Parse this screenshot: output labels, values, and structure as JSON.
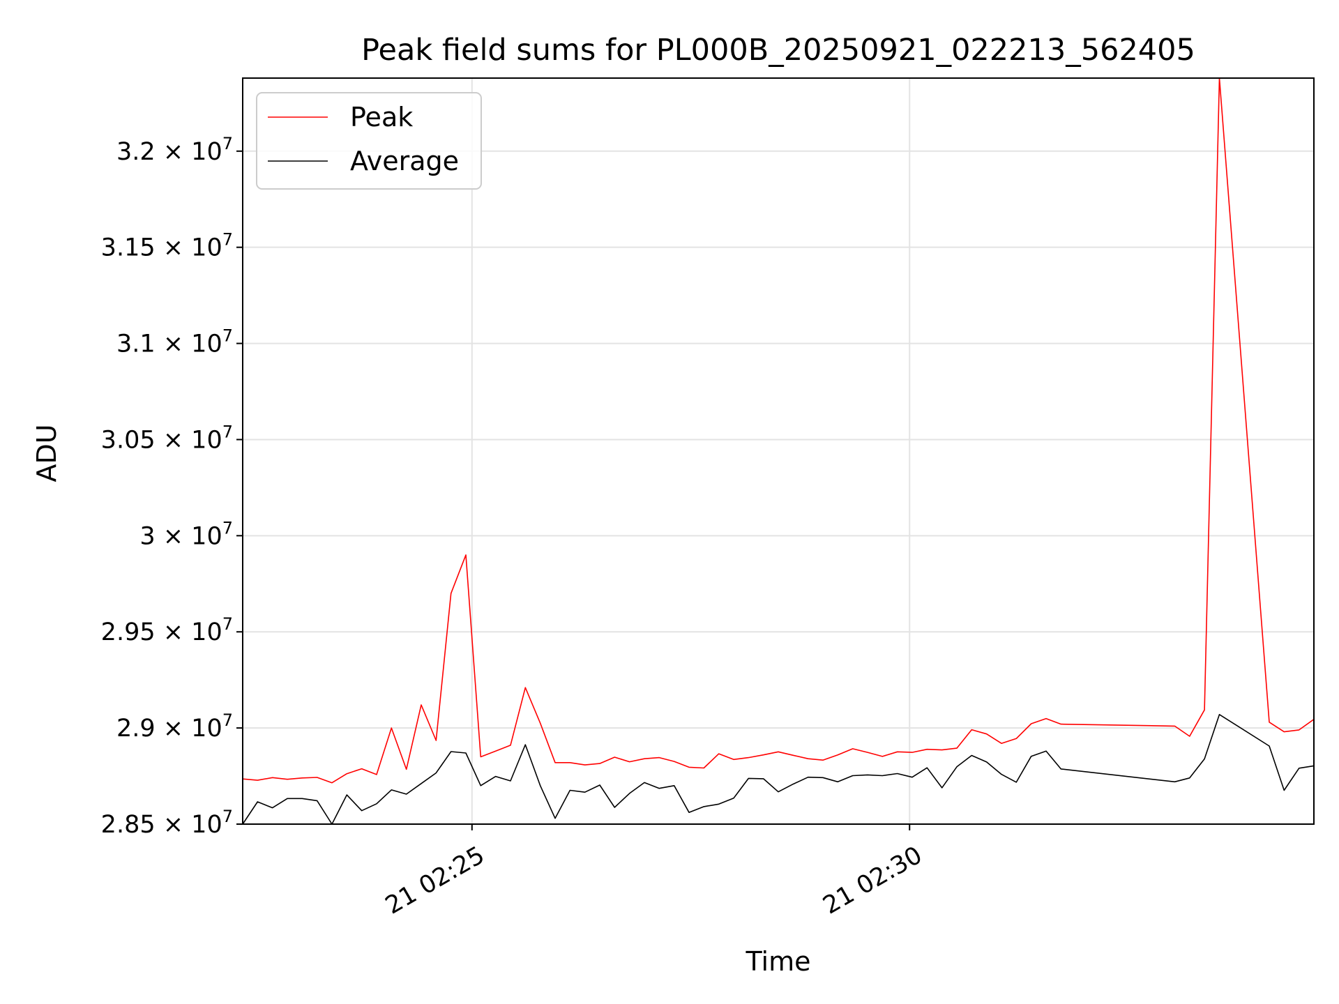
{
  "chart_data": {
    "type": "line",
    "title": "Peak field sums for PL000B_20250921_022213_562405",
    "xlabel": "Time",
    "ylabel": "ADU",
    "grid": true,
    "legend_position": "top-left",
    "xlim_minutes": [
      22.38,
      34.62
    ],
    "ylim": [
      28500000,
      32380000
    ],
    "x_unit": "minutes after 21 02:00",
    "x_ticks": [
      {
        "value": 25,
        "label": "21 02:25"
      },
      {
        "value": 30,
        "label": "21 02:30"
      }
    ],
    "y_ticks": [
      {
        "value": 28500000,
        "mantissa": "2.85"
      },
      {
        "value": 29000000,
        "mantissa": "2.9"
      },
      {
        "value": 29500000,
        "mantissa": "2.95"
      },
      {
        "value": 30000000,
        "mantissa": "3"
      },
      {
        "value": 30500000,
        "mantissa": "3.05"
      },
      {
        "value": 31000000,
        "mantissa": "3.1"
      },
      {
        "value": 31500000,
        "mantissa": "3.15"
      },
      {
        "value": 32000000,
        "mantissa": "3.2"
      }
    ],
    "y_tick_suffix": "× 10",
    "y_tick_exponent": "7",
    "x": [
      22.38,
      22.55,
      22.72,
      22.89,
      23.06,
      23.23,
      23.4,
      23.57,
      23.74,
      23.91,
      24.08,
      24.25,
      24.42,
      24.59,
      24.76,
      24.93,
      25.1,
      25.27,
      25.44,
      25.61,
      25.78,
      25.95,
      26.12,
      26.29,
      26.46,
      26.63,
      26.8,
      26.97,
      27.14,
      27.31,
      27.48,
      27.65,
      27.82,
      27.99,
      28.16,
      28.33,
      28.5,
      28.67,
      28.84,
      29.01,
      29.18,
      29.35,
      29.52,
      29.69,
      29.86,
      30.03,
      30.2,
      30.37,
      30.54,
      30.71,
      30.88,
      31.05,
      31.22,
      31.39,
      31.56,
      31.73,
      33.03,
      33.2,
      33.37,
      33.54,
      34.11,
      34.28,
      34.45,
      34.62
    ],
    "series": [
      {
        "name": "Peak",
        "color": "#ff0000",
        "values": [
          28735000,
          28728000,
          28742000,
          28733000,
          28740000,
          28743000,
          28715000,
          28762000,
          28788000,
          28758000,
          29000000,
          28785000,
          29120000,
          28935000,
          29700000,
          29900000,
          28850000,
          28880000,
          28910000,
          29210000,
          29025000,
          28820000,
          28820000,
          28808000,
          28815000,
          28848000,
          28824000,
          28840000,
          28846000,
          28826000,
          28796000,
          28792000,
          28866000,
          28836000,
          28846000,
          28860000,
          28876000,
          28858000,
          28840000,
          28833000,
          28860000,
          28892000,
          28873000,
          28852000,
          28876000,
          28873000,
          28889000,
          28886000,
          28895000,
          28991000,
          28969000,
          28920000,
          28945000,
          29022000,
          29049000,
          29020000,
          29010000,
          28957000,
          29094000,
          32380000,
          29030000,
          28980000,
          28990000,
          29045000
        ]
      },
      {
        "name": "Average",
        "color": "#000000",
        "values": [
          28500000,
          28616000,
          28585000,
          28633000,
          28633000,
          28622000,
          28500000,
          28652000,
          28570000,
          28606000,
          28678000,
          28656000,
          28711000,
          28766000,
          28877000,
          28870000,
          28700000,
          28748000,
          28725000,
          28913000,
          28700000,
          28530000,
          28676000,
          28666000,
          28703000,
          28587000,
          28660000,
          28716000,
          28686000,
          28700000,
          28561000,
          28591000,
          28604000,
          28635000,
          28738000,
          28736000,
          28668000,
          28708000,
          28744000,
          28742000,
          28720000,
          28752000,
          28756000,
          28752000,
          28763000,
          28744000,
          28793000,
          28689000,
          28798000,
          28857000,
          28823000,
          28759000,
          28718000,
          28853000,
          28880000,
          28787000,
          28720000,
          28740000,
          28839000,
          29070000,
          28906000,
          28676000,
          28791000,
          28803000
        ]
      }
    ]
  }
}
